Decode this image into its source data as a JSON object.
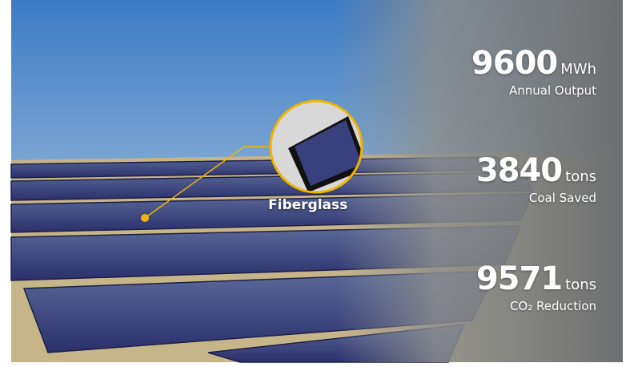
{
  "callout": "Fiberglass",
  "stats": [
    {
      "value": 9600,
      "unit": "MWh",
      "label": "Annual Output"
    },
    {
      "value": 3840,
      "unit": "tons",
      "label": "Coal Saved"
    },
    {
      "value": 9571,
      "unit": "tons",
      "label": "CO₂ Reduction"
    }
  ]
}
